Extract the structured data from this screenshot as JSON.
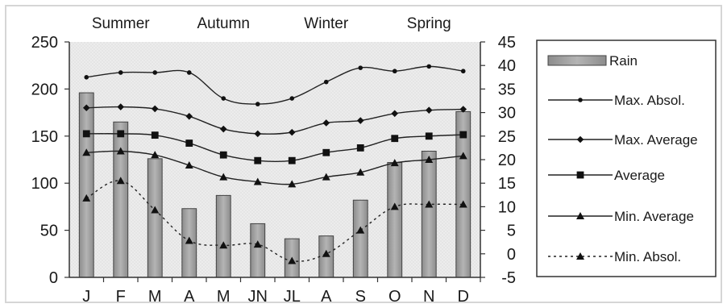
{
  "chart_data": {
    "type": "bar+line",
    "categories": [
      "J",
      "F",
      "M",
      "A",
      "M",
      "JN",
      "JL",
      "A",
      "S",
      "O",
      "N",
      "D"
    ],
    "seasons": [
      "Summer",
      "Autumn",
      "Winter",
      "Spring"
    ],
    "y_left": {
      "ticks": [
        "0",
        "50",
        "100",
        "150",
        "200",
        "250"
      ],
      "range": [
        0,
        250
      ]
    },
    "y_right": {
      "ticks": [
        "-5",
        "0",
        "5",
        "10",
        "15",
        "20",
        "25",
        "30",
        "35",
        "40",
        "45"
      ],
      "range": [
        -5,
        45
      ]
    },
    "grid": false,
    "legend_position": "right",
    "bars": {
      "name": "Rain",
      "axis": "left",
      "values": [
        196,
        165,
        126,
        73,
        87,
        57,
        41,
        44,
        82,
        122,
        134,
        176
      ],
      "color": "#a6a6a6"
    },
    "series": [
      {
        "name": "Max. Absol.",
        "axis": "right",
        "marker": "dot",
        "dashed": false,
        "values": [
          37.5,
          38.5,
          38.5,
          38.5,
          33.0,
          31.8,
          33.0,
          36.5,
          39.5,
          38.8,
          39.8,
          38.8
        ]
      },
      {
        "name": "Max. Average",
        "axis": "right",
        "marker": "diamond",
        "dashed": false,
        "values": [
          31.0,
          31.2,
          30.8,
          29.2,
          26.5,
          25.5,
          25.8,
          27.8,
          28.3,
          29.8,
          30.5,
          30.7
        ]
      },
      {
        "name": "Average",
        "axis": "right",
        "marker": "square",
        "dashed": false,
        "values": [
          25.5,
          25.5,
          25.2,
          23.5,
          21.0,
          19.8,
          19.8,
          21.5,
          22.5,
          24.5,
          25.0,
          25.3
        ]
      },
      {
        "name": "Min. Average",
        "axis": "right",
        "marker": "triangle",
        "dashed": false,
        "values": [
          21.5,
          21.8,
          21.0,
          18.8,
          16.3,
          15.3,
          14.8,
          16.3,
          17.3,
          19.3,
          20.0,
          20.8
        ]
      },
      {
        "name": "Min. Absol.",
        "axis": "right",
        "marker": "triangle",
        "dashed": true,
        "values": [
          11.8,
          15.5,
          9.3,
          2.8,
          1.8,
          2.0,
          -1.5,
          0.0,
          5.0,
          10.0,
          10.5,
          10.5
        ]
      }
    ]
  }
}
